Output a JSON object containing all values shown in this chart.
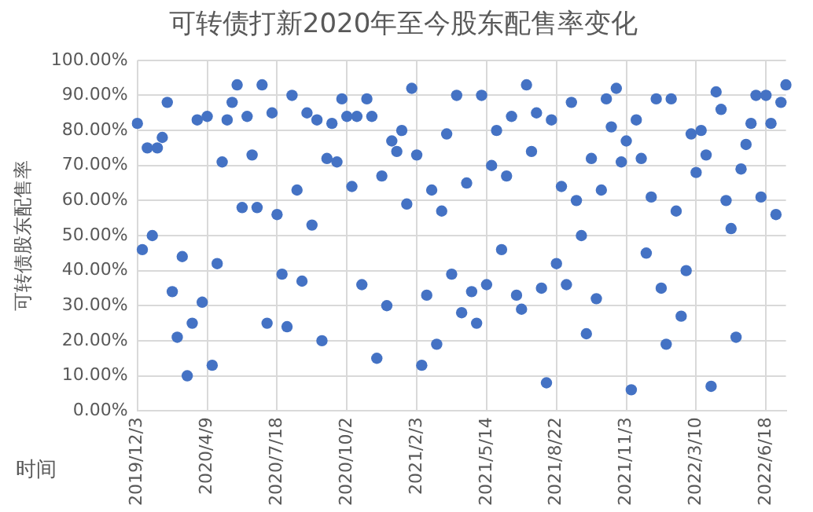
{
  "chart_data": {
    "type": "scatter",
    "title": "可转债打新2020年至今股东配售率变化",
    "xlabel": "时间",
    "ylabel": "可转债股东配售率",
    "categories": [
      "2019/12/3",
      null,
      null,
      null,
      null,
      null,
      null,
      null,
      null,
      null,
      null,
      null,
      null,
      null,
      "2020/4/9",
      null,
      null,
      null,
      null,
      null,
      null,
      null,
      null,
      null,
      null,
      null,
      null,
      null,
      "2020/7/18",
      null,
      null,
      null,
      null,
      null,
      null,
      null,
      null,
      null,
      null,
      null,
      null,
      null,
      "2020/10/2",
      null,
      null,
      null,
      null,
      null,
      null,
      null,
      null,
      null,
      null,
      null,
      null,
      null,
      "2021/2/3",
      null,
      null,
      null,
      null,
      null,
      null,
      null,
      null,
      null,
      null,
      null,
      null,
      null,
      "2021/5/14",
      null,
      null,
      null,
      null,
      null,
      null,
      null,
      null,
      null,
      null,
      null,
      null,
      null,
      "2021/8/22",
      null,
      null,
      null,
      null,
      null,
      null,
      null,
      null,
      null,
      null,
      null,
      null,
      null,
      "2021/11/3",
      null,
      null,
      null,
      null,
      null,
      null,
      null,
      null,
      null,
      null,
      null,
      null,
      null,
      "2022/3/10",
      null,
      null,
      null,
      null,
      null,
      null,
      null,
      null,
      null,
      null,
      null,
      null,
      null,
      "2022/6/18",
      null,
      null,
      null,
      null
    ],
    "series": [
      {
        "color": "#4472c4",
        "values": [
          82,
          46,
          75,
          50,
          75,
          78,
          88,
          34,
          21,
          44,
          10,
          25,
          83,
          31,
          84,
          13,
          42,
          71,
          83,
          88,
          93,
          58,
          84,
          73,
          58,
          93,
          25,
          85,
          56,
          39,
          24,
          90,
          63,
          37,
          85,
          53,
          83,
          20,
          72,
          82,
          71,
          89,
          84,
          64,
          84,
          36,
          89,
          84,
          15,
          67,
          30,
          77,
          74,
          80,
          59,
          92,
          73,
          13,
          33,
          63,
          19,
          57,
          79,
          39,
          90,
          28,
          65,
          34,
          25,
          90,
          36,
          70,
          80,
          46,
          67,
          84,
          33,
          29,
          93,
          74,
          85,
          35,
          8,
          83,
          42,
          64,
          36,
          88,
          60,
          50,
          22,
          72,
          32,
          63,
          89,
          81,
          92,
          71,
          77,
          6,
          83,
          72,
          45,
          61,
          89,
          35,
          19,
          89,
          57,
          27,
          40,
          79,
          68,
          80,
          73,
          7,
          91,
          86,
          60,
          52,
          21,
          69,
          76,
          82,
          90,
          61,
          90,
          82,
          56,
          88,
          93
        ]
      }
    ],
    "ylim": [
      0,
      100
    ],
    "yticks": [
      {
        "value": 0,
        "label": "0.00%"
      },
      {
        "value": 10,
        "label": "10.00%"
      },
      {
        "value": 20,
        "label": "20.00%"
      },
      {
        "value": 30,
        "label": "30.00%"
      },
      {
        "value": 40,
        "label": "40.00%"
      },
      {
        "value": 50,
        "label": "50.00%"
      },
      {
        "value": 60,
        "label": "60.00%"
      },
      {
        "value": 70,
        "label": "70.00%"
      },
      {
        "value": 80,
        "label": "80.00%"
      },
      {
        "value": 90,
        "label": "90.00%"
      },
      {
        "value": 100,
        "label": "100.00%"
      }
    ],
    "grid": true,
    "legend": false,
    "marker": "circle"
  }
}
